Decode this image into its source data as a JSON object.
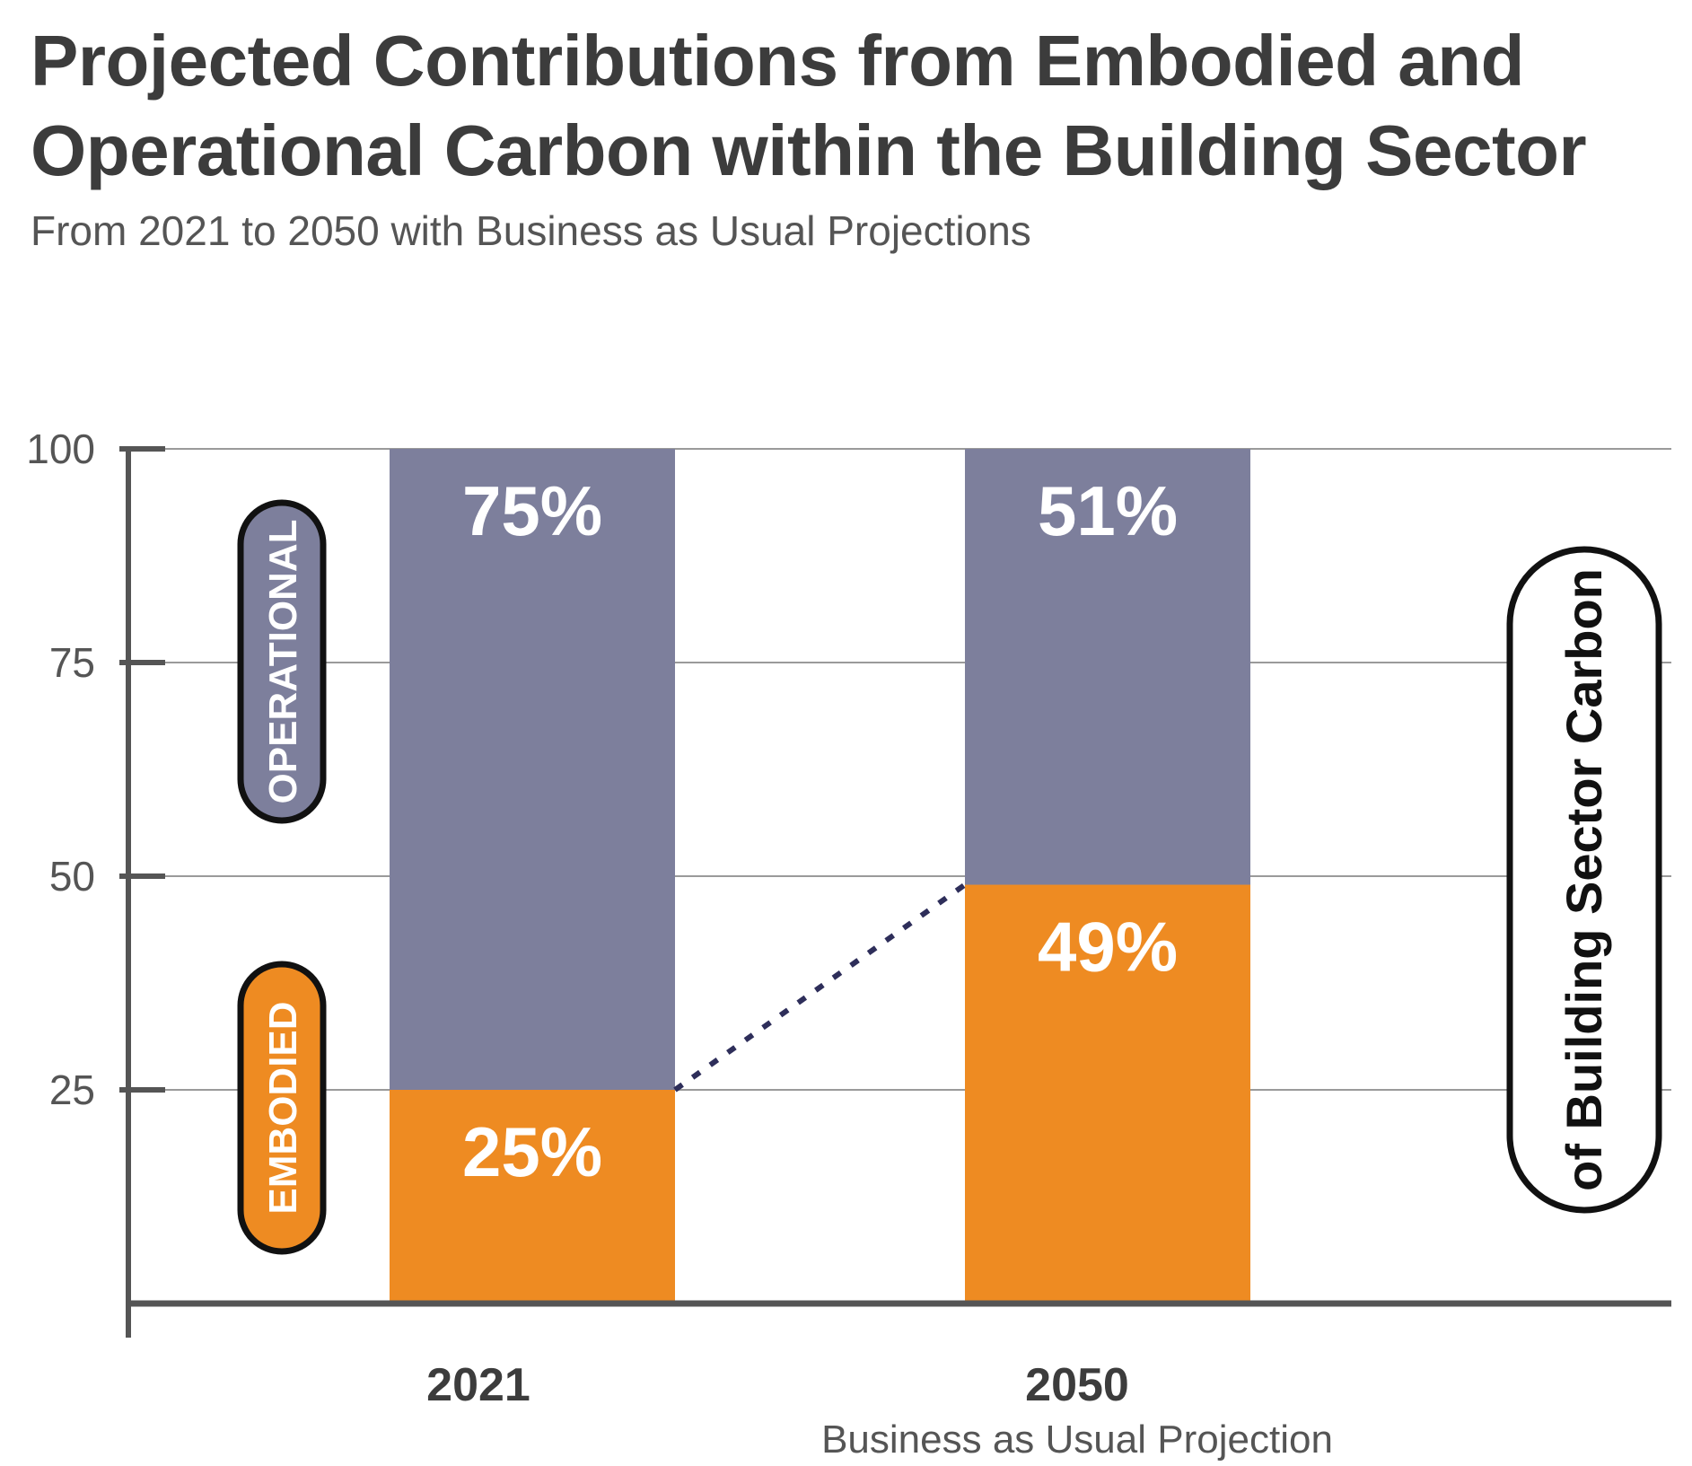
{
  "title": "Projected Contributions from Embodied and Operational Carbon within the Building Sector",
  "subtitle": "From 2021 to 2050 with Business as Usual Projections",
  "colors": {
    "operational": "#7d7f9c",
    "embodied": "#ee8b22",
    "connector": "#2e2e5a",
    "text": "#3c3c3c"
  },
  "chart_data": {
    "type": "bar",
    "stacked": true,
    "categories": [
      "2021",
      "2050"
    ],
    "category_sublabels": [
      "",
      "Business as Usual Projection"
    ],
    "series": [
      {
        "name": "EMBODIED",
        "values": [
          25,
          49
        ],
        "labels": [
          "25%",
          "49%"
        ]
      },
      {
        "name": "OPERATIONAL",
        "values": [
          75,
          51
        ],
        "labels": [
          "75%",
          "51%"
        ]
      }
    ],
    "yticks": [
      "25",
      "50",
      "75",
      "100"
    ],
    "ylim": [
      0,
      100
    ],
    "grid": true,
    "legend": [
      "OPERATIONAL",
      "EMBODIED"
    ],
    "side_annotation": "of Building Sector Carbon"
  }
}
